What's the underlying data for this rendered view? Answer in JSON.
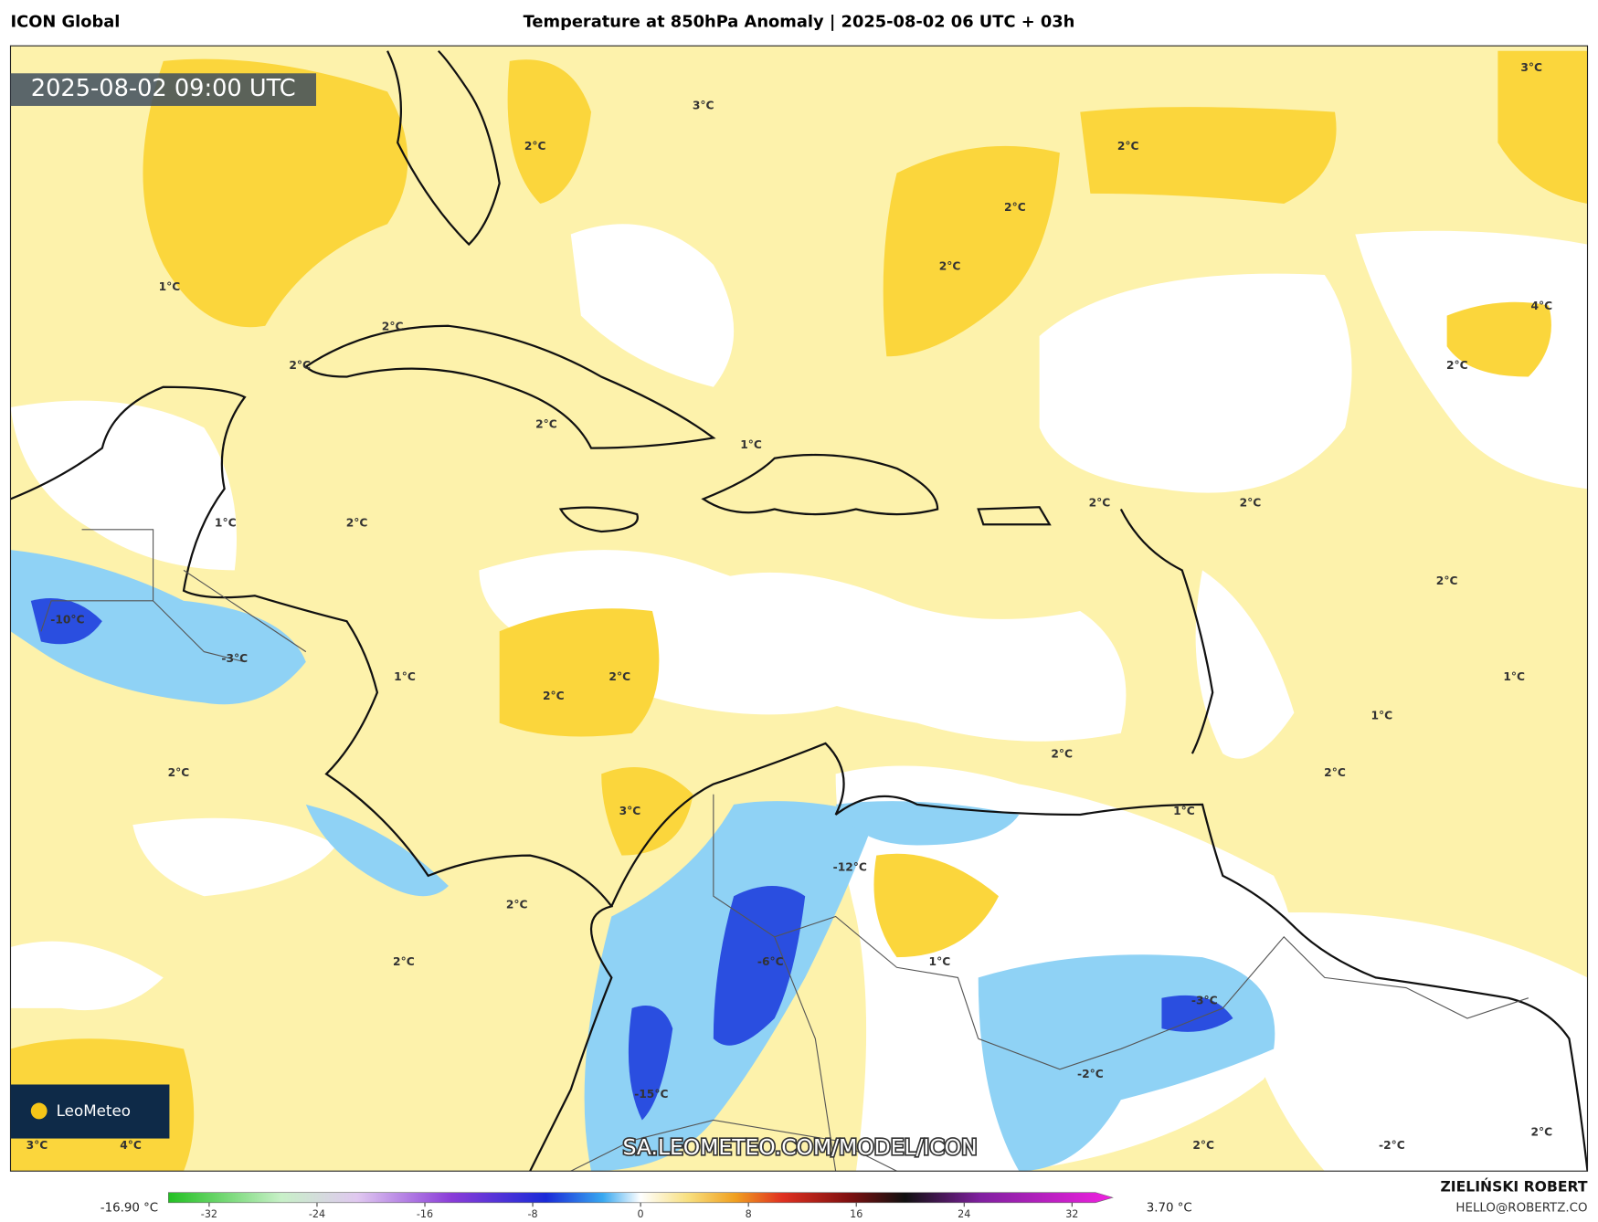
{
  "header": {
    "model": "ICON Global",
    "title": "Temperature at 850hPa Anomaly | 2025-08-02 06 UTC + 03h"
  },
  "map": {
    "timestamp": "2025-08-02 09:00 UTC",
    "watermark": "SA.LEOMETEO.COM/MODEL/ICON",
    "logo": "LeoMeteo",
    "labels": [
      "3°C",
      "3°C",
      "2°C",
      "2°C",
      "2°C",
      "2°C",
      "1°C",
      "4°C",
      "2°C",
      "2°C",
      "2°C",
      "2°C",
      "1°C",
      "2°C",
      "2°C",
      "1°C",
      "2°C",
      "2°C",
      "-10°C",
      "-3°C",
      "1°C",
      "2°C",
      "1°C",
      "2°C",
      "1°C",
      "2°C",
      "2°C",
      "2°C",
      "3°C",
      "1°C",
      "-12°C",
      "2°C",
      "2°C",
      "-6°C",
      "1°C",
      "-3°C",
      "-2°C",
      "-15°C",
      "2°C",
      "3°C",
      "4°C",
      "2°C",
      "-2°C"
    ]
  },
  "colorbar": {
    "min_label": "-16.90 °C",
    "max_label": "3.70 °C",
    "ticks": [
      -32,
      -24,
      -16,
      -8,
      0,
      8,
      16,
      24,
      32
    ]
  },
  "footer": {
    "author": "ZIELIŃSKI ROBERT",
    "email": "HELLO@ROBERTZ.CO"
  }
}
